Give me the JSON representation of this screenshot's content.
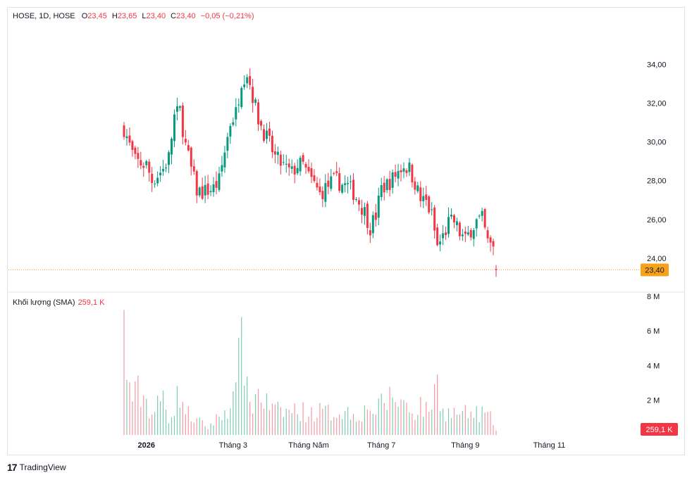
{
  "header": {
    "symbol": "HOSE, 1D, HOSE",
    "open_label": "O",
    "open": "23,45",
    "high_label": "H",
    "high": "23,65",
    "low_label": "L",
    "low": "23,40",
    "close_label": "C",
    "close": "23,40",
    "change": "−0,05 (−0,21%)"
  },
  "volume_legend": {
    "label": "Khối lượng (SMA)",
    "value": "259,1 K"
  },
  "footer": {
    "brand": "TradingView"
  },
  "colors": {
    "up": "#089981",
    "down": "#f23645",
    "last_price": "#f7a21b"
  },
  "chart_data": {
    "type": "candlestick",
    "price_axis": {
      "ticks": [
        "34,00",
        "32,00",
        "30,00",
        "28,00",
        "26,00",
        "24,00"
      ],
      "tick_values": [
        34,
        32,
        30,
        28,
        26,
        24
      ],
      "range": [
        22.8,
        35.5
      ]
    },
    "last_price": {
      "value": 23.4,
      "label": "23,40"
    },
    "volume_axis": {
      "ticks": [
        "8 M",
        "6 M",
        "4 M",
        "2 M"
      ],
      "tick_values": [
        8,
        6,
        4,
        2
      ],
      "range_millions": [
        0,
        8.2
      ]
    },
    "volume_last": {
      "label": "259,1 K"
    },
    "time_axis": {
      "labels": [
        "2026",
        "Tháng 3",
        "Tháng Năm",
        "Tháng 7",
        "Tháng 9",
        "Tháng 11"
      ],
      "bar_index": [
        8,
        39,
        66,
        92,
        122,
        152
      ]
    },
    "close_path": [
      [
        0,
        30.7
      ],
      [
        2,
        29.8
      ],
      [
        4,
        29.0
      ],
      [
        6,
        28.9
      ],
      [
        8,
        28.8
      ],
      [
        10,
        28.0
      ],
      [
        12,
        28.3
      ],
      [
        14,
        28.6
      ],
      [
        16,
        29.2
      ],
      [
        18,
        31.3
      ],
      [
        20,
        31.6
      ],
      [
        22,
        29.8
      ],
      [
        24,
        28.6
      ],
      [
        26,
        27.5
      ],
      [
        28,
        27.4
      ],
      [
        30,
        27.5
      ],
      [
        32,
        27.6
      ],
      [
        34,
        28.0
      ],
      [
        36,
        29.5
      ],
      [
        38,
        31.0
      ],
      [
        40,
        31.5
      ],
      [
        42,
        33.2
      ],
      [
        44,
        33.6
      ],
      [
        46,
        32.4
      ],
      [
        48,
        31.2
      ],
      [
        50,
        30.5
      ],
      [
        52,
        29.9
      ],
      [
        54,
        29.2
      ],
      [
        56,
        28.9
      ],
      [
        58,
        28.6
      ],
      [
        60,
        28.4
      ],
      [
        62,
        28.8
      ],
      [
        64,
        28.8
      ],
      [
        66,
        28.2
      ],
      [
        68,
        27.8
      ],
      [
        70,
        27.3
      ],
      [
        72,
        27.6
      ],
      [
        74,
        27.9
      ],
      [
        76,
        28.0
      ],
      [
        78,
        27.8
      ],
      [
        80,
        27.7
      ],
      [
        82,
        27.4
      ],
      [
        84,
        26.9
      ],
      [
        86,
        26.4
      ],
      [
        88,
        25.6
      ],
      [
        90,
        26.2
      ],
      [
        92,
        27.6
      ],
      [
        94,
        27.8
      ],
      [
        96,
        28.1
      ],
      [
        98,
        28.5
      ],
      [
        100,
        28.8
      ],
      [
        102,
        28.6
      ],
      [
        104,
        27.9
      ],
      [
        106,
        27.0
      ],
      [
        108,
        26.9
      ],
      [
        110,
        26.2
      ],
      [
        112,
        24.6
      ],
      [
        114,
        25.1
      ],
      [
        116,
        25.8
      ],
      [
        118,
        25.9
      ],
      [
        120,
        25.3
      ],
      [
        122,
        24.9
      ],
      [
        124,
        25.5
      ],
      [
        126,
        25.9
      ],
      [
        128,
        26.0
      ],
      [
        130,
        24.8
      ],
      [
        132,
        24.5
      ],
      [
        133,
        23.4
      ]
    ],
    "volume_shape_millions": [
      [
        0,
        7.2
      ],
      [
        1,
        3.4
      ],
      [
        2,
        3.8
      ],
      [
        3,
        2.2
      ],
      [
        5,
        2.8
      ],
      [
        8,
        2.2
      ],
      [
        10,
        1.3
      ],
      [
        14,
        2.4
      ],
      [
        16,
        1.2
      ],
      [
        18,
        1.8
      ],
      [
        20,
        2.8
      ],
      [
        22,
        1.5
      ],
      [
        26,
        0.9
      ],
      [
        30,
        0.5
      ],
      [
        33,
        1.0
      ],
      [
        36,
        1.5
      ],
      [
        38,
        2.1
      ],
      [
        40,
        2.4
      ],
      [
        42,
        6.8
      ],
      [
        44,
        2.6
      ],
      [
        46,
        2.0
      ],
      [
        48,
        2.8
      ],
      [
        50,
        2.2
      ],
      [
        54,
        1.5
      ],
      [
        58,
        1.5
      ],
      [
        62,
        1.6
      ],
      [
        66,
        1.4
      ],
      [
        70,
        1.5
      ],
      [
        74,
        1.4
      ],
      [
        78,
        1.6
      ],
      [
        82,
        1.3
      ],
      [
        86,
        1.5
      ],
      [
        88,
        2.0
      ],
      [
        90,
        1.3
      ],
      [
        92,
        2.0
      ],
      [
        94,
        2.2
      ],
      [
        96,
        2.5
      ],
      [
        98,
        2.2
      ],
      [
        100,
        2.1
      ],
      [
        102,
        1.6
      ],
      [
        104,
        1.5
      ],
      [
        106,
        2.0
      ],
      [
        108,
        1.5
      ],
      [
        110,
        2.1
      ],
      [
        112,
        3.5
      ],
      [
        114,
        1.6
      ],
      [
        116,
        1.4
      ],
      [
        120,
        1.4
      ],
      [
        124,
        1.3
      ],
      [
        128,
        1.4
      ],
      [
        130,
        1.2
      ],
      [
        132,
        0.9
      ],
      [
        133,
        0.26
      ]
    ],
    "bar_count": 134,
    "seed": 7
  }
}
